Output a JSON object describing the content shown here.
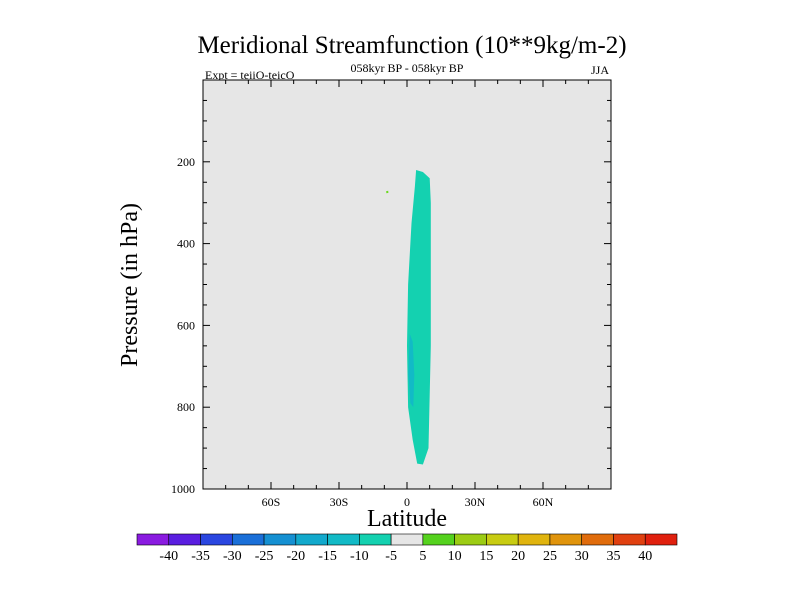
{
  "chart_data": {
    "type": "heatmap",
    "title": "Meridional Streamfunction (10**9kg/m-2)",
    "left_subtitle": "Expt = teiiO-teicO",
    "center_subtitle": "058kyr BP - 058kyr BP",
    "right_subtitle": "JJA",
    "xlabel": "Latitude",
    "ylabel": "Pressure (in hPa)",
    "xlim": [
      -90,
      90
    ],
    "ylim": [
      0,
      1000
    ],
    "y_inverted": true,
    "x_ticks": [
      {
        "value": -60,
        "label": "60S"
      },
      {
        "value": -30,
        "label": "30S"
      },
      {
        "value": 0,
        "label": "0"
      },
      {
        "value": 30,
        "label": "30N"
      },
      {
        "value": 60,
        "label": "60N"
      }
    ],
    "y_ticks": [
      {
        "value": 200,
        "label": "200"
      },
      {
        "value": 400,
        "label": "400"
      },
      {
        "value": 600,
        "label": "600"
      },
      {
        "value": 800,
        "label": "800"
      },
      {
        "value": 1000,
        "label": "1000"
      }
    ],
    "grid": false,
    "background_color": "#e6e6e6",
    "contour_regions": [
      {
        "name": "band -10 to -5",
        "value_range": [
          -10,
          -5
        ],
        "color": "#14d1b0",
        "polygon": [
          [
            4,
            220
          ],
          [
            7,
            225
          ],
          [
            10,
            240
          ],
          [
            10.5,
            300
          ],
          [
            10.5,
            650
          ],
          [
            9.5,
            900
          ],
          [
            7,
            940
          ],
          [
            4.5,
            938
          ],
          [
            2.5,
            880
          ],
          [
            0.5,
            800
          ],
          [
            0,
            650
          ],
          [
            0.5,
            500
          ],
          [
            2,
            350
          ],
          [
            3.5,
            260
          ]
        ]
      },
      {
        "name": "band -15 to -10",
        "value_range": [
          -15,
          -10
        ],
        "color": "#12bac6",
        "polygon": [
          [
            1.2,
            620
          ],
          [
            2.5,
            640
          ],
          [
            3.2,
            720
          ],
          [
            2.8,
            800
          ],
          [
            1.5,
            790
          ],
          [
            0.6,
            720
          ]
        ]
      },
      {
        "name": "small 5 to 10 dot",
        "value_range": [
          5,
          10
        ],
        "color": "#6bd91e",
        "polygon": [
          [
            -9.2,
            272
          ],
          [
            -8.3,
            271
          ],
          [
            -8.2,
            276
          ],
          [
            -9.1,
            277
          ]
        ]
      }
    ],
    "colorbar": {
      "labels": [
        "-40",
        "-35",
        "-30",
        "-25",
        "-20",
        "-15",
        "-10",
        "-5",
        "5",
        "10",
        "15",
        "20",
        "25",
        "30",
        "35",
        "40"
      ],
      "colors": [
        "#8a1be0",
        "#5a1ee0",
        "#2a46e0",
        "#1a6fd8",
        "#1590d2",
        "#12a9cc",
        "#12bac6",
        "#14d1b0",
        "#e6e6e6",
        "#55d21e",
        "#9ccc14",
        "#c8cc12",
        "#e0b40e",
        "#e0940c",
        "#e06c0c",
        "#e04010",
        "#e0200e"
      ]
    }
  }
}
